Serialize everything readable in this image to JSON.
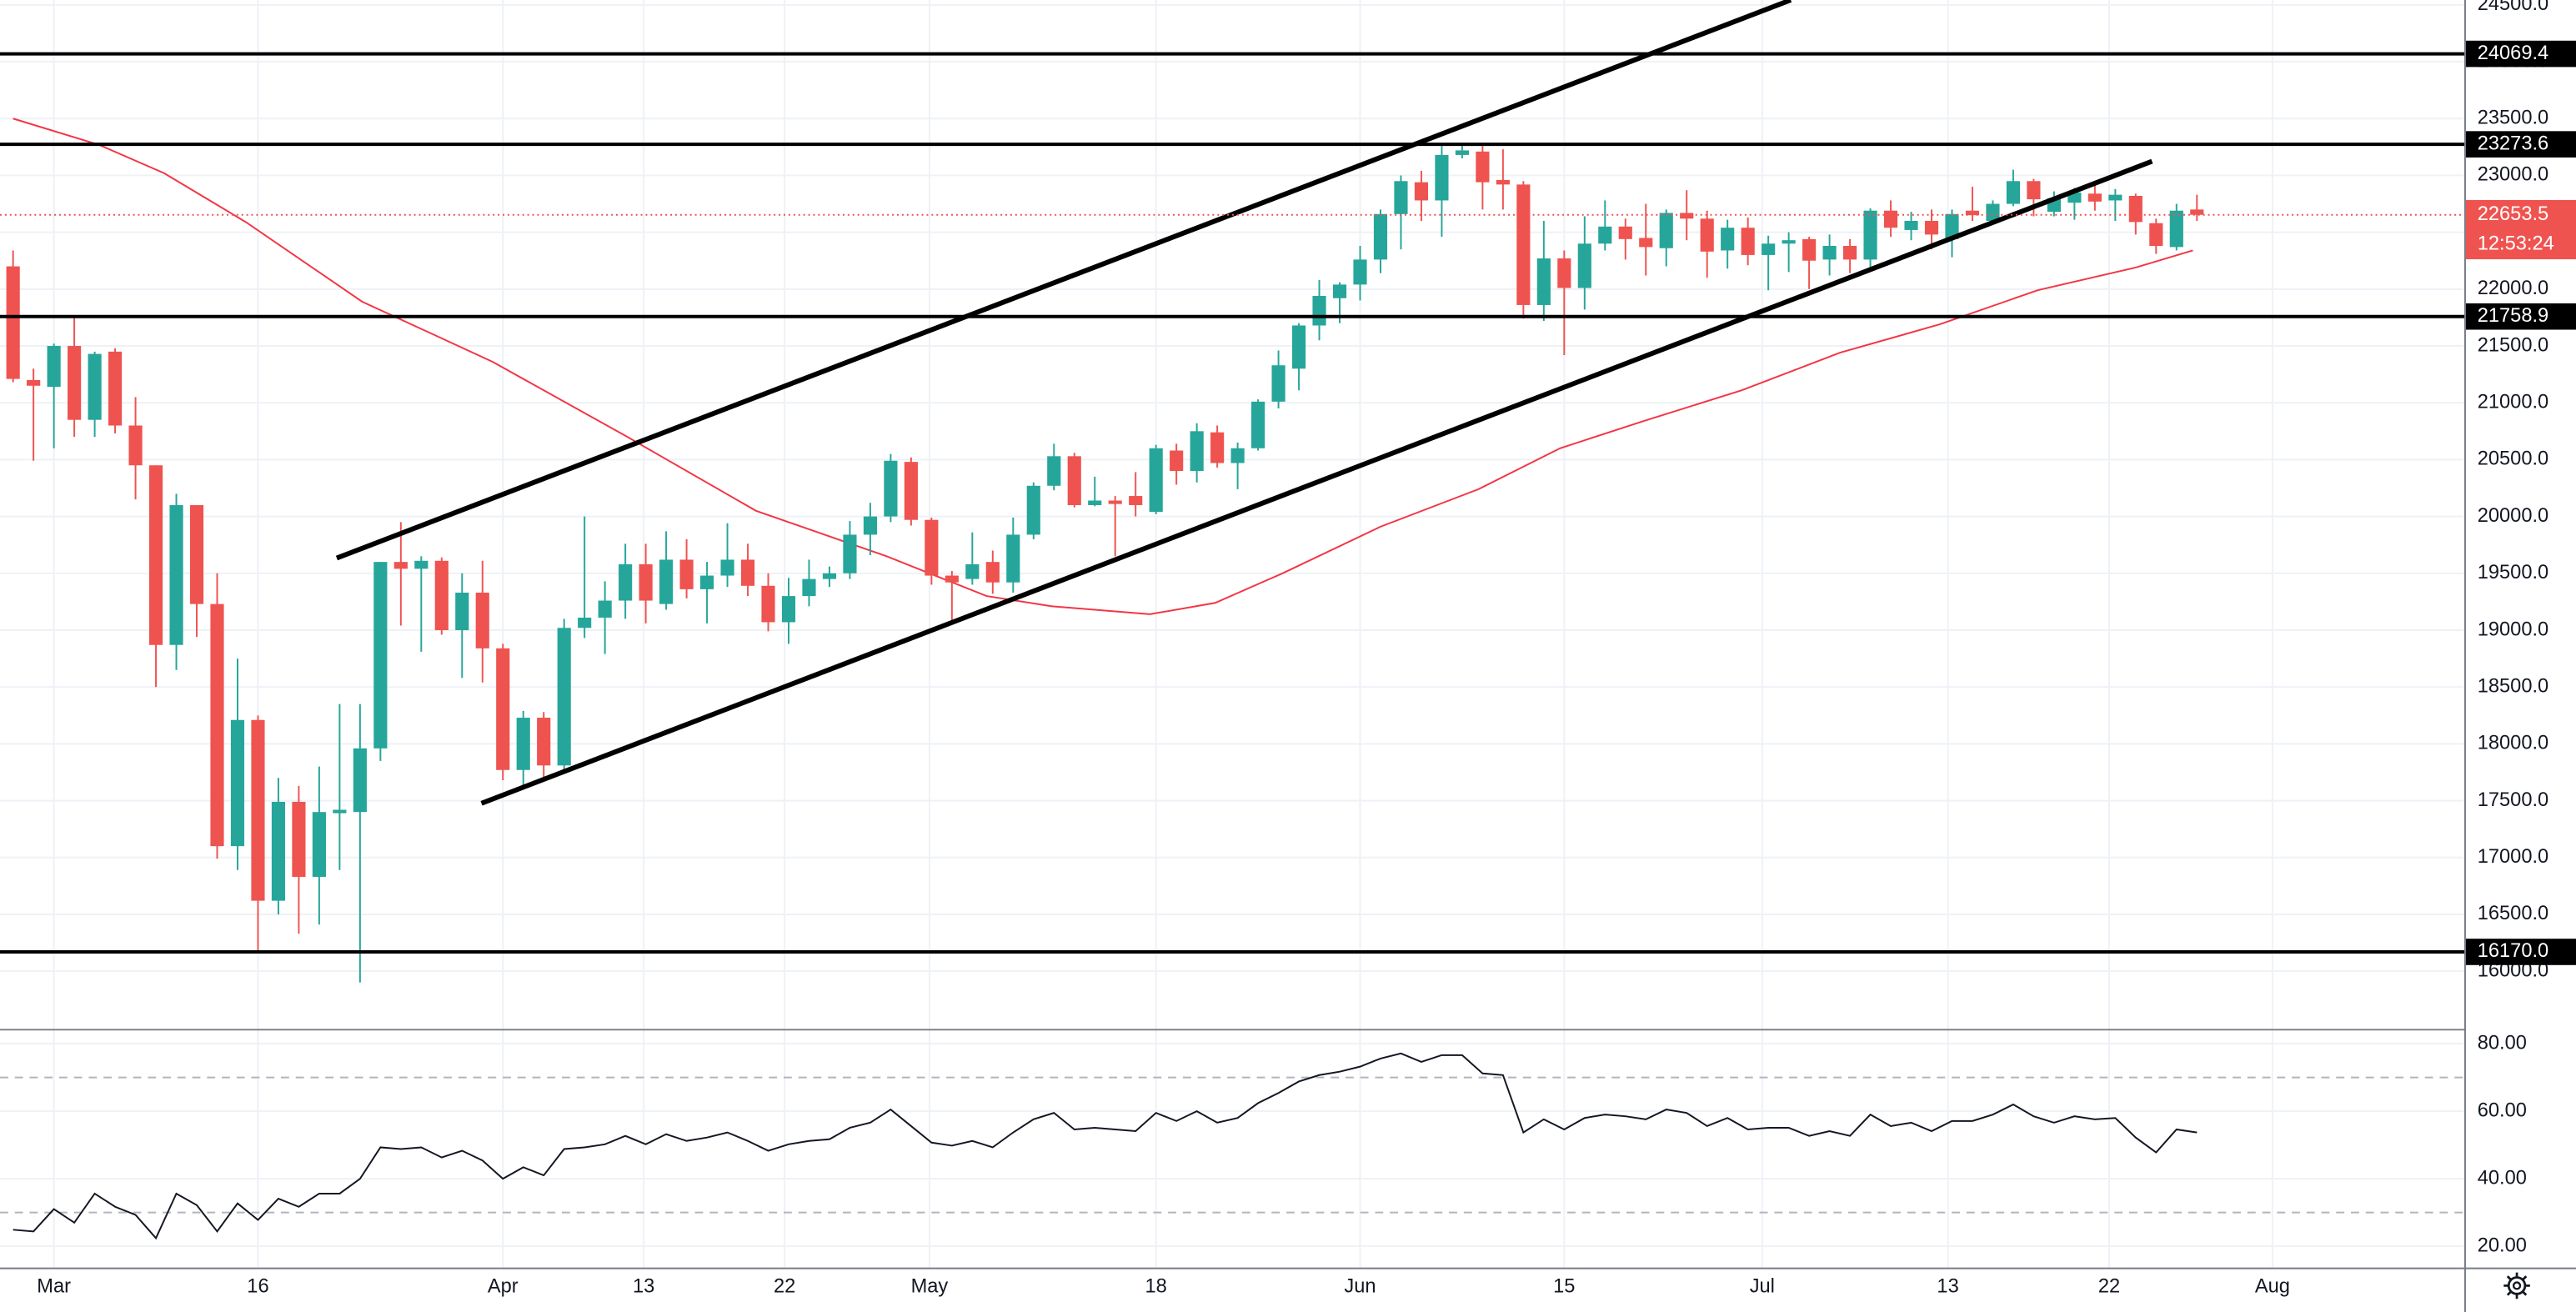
{
  "chart_data": {
    "type": "candlestick",
    "xlim": [
      -0.64,
      120.1
    ],
    "xticks": [
      {
        "value": 2,
        "label": "Mar"
      },
      {
        "value": 12,
        "label": "16"
      },
      {
        "value": 24,
        "label": "Apr"
      },
      {
        "value": 30.9,
        "label": "13"
      },
      {
        "value": 37.8,
        "label": "22"
      },
      {
        "value": 44.9,
        "label": "May"
      },
      {
        "value": 56,
        "label": "18"
      },
      {
        "value": 66,
        "label": "Jun"
      },
      {
        "value": 76,
        "label": "15"
      },
      {
        "value": 85.7,
        "label": "Jul"
      },
      {
        "value": 94.8,
        "label": "13"
      },
      {
        "value": 102.7,
        "label": "22"
      },
      {
        "value": 110.7,
        "label": "Aug"
      }
    ],
    "ylim": [
      15493,
      24543
    ],
    "yticks": [
      {
        "value": 16000,
        "label": "16000.0"
      },
      {
        "value": 16500,
        "label": "16500.0"
      },
      {
        "value": 17000,
        "label": "17000.0"
      },
      {
        "value": 17500,
        "label": "17500.0"
      },
      {
        "value": 18000,
        "label": "18000.0"
      },
      {
        "value": 18500,
        "label": "18500.0"
      },
      {
        "value": 19000,
        "label": "19000.0"
      },
      {
        "value": 19500,
        "label": "19500.0"
      },
      {
        "value": 20000,
        "label": "20000.0"
      },
      {
        "value": 20500,
        "label": "20500.0"
      },
      {
        "value": 21000,
        "label": "21000.0"
      },
      {
        "value": 21500,
        "label": "21500.0"
      },
      {
        "value": 22000,
        "label": "22000.0"
      },
      {
        "value": 22500,
        "label": "22500.0"
      },
      {
        "value": 23000,
        "label": "23000.0"
      },
      {
        "value": 23500,
        "label": "23500.0"
      },
      {
        "value": 24000,
        "label": "24000.0"
      },
      {
        "value": 24500,
        "label": "24500.0"
      }
    ],
    "grid": true,
    "up_color": "#26a69a",
    "down_color": "#ef5350",
    "open": [
      22200,
      21200,
      21140,
      21500,
      20850,
      21450,
      20800,
      20450,
      18870,
      20100,
      19230,
      17100,
      18210,
      16620,
      17490,
      16830,
      17390,
      17400,
      17960,
      19600,
      19540,
      19610,
      19000,
      19330,
      18840,
      17770,
      18230,
      17810,
      19020,
      19110,
      19260,
      19580,
      19230,
      19620,
      19360,
      19480,
      19620,
      19390,
      19070,
      19300,
      19450,
      19500,
      19840,
      20000,
      20480,
      19970,
      19480,
      19450,
      19600,
      19420,
      19840,
      20270,
      20530,
      20100,
      20140,
      20180,
      20040,
      20580,
      20400,
      20740,
      20470,
      20600,
      21010,
      21300,
      21680,
      21920,
      22040,
      22260,
      22660,
      22940,
      22780,
      23180,
      23210,
      22960,
      22920,
      21860,
      22270,
      22010,
      22400,
      22550,
      22450,
      22360,
      22670,
      22620,
      22340,
      22540,
      22300,
      22400,
      22440,
      22260,
      22380,
      22260,
      22690,
      22520,
      22600,
      22440,
      22690,
      22600,
      22750,
      22950,
      22680,
      22760,
      22840,
      22780,
      22820,
      22580,
      22370,
      22700
    ],
    "high": [
      22340,
      21300,
      21520,
      21750,
      21450,
      21480,
      21050,
      20450,
      20200,
      20100,
      19500,
      18750,
      18250,
      17700,
      17630,
      17800,
      18350,
      18350,
      19600,
      19950,
      19650,
      19640,
      19500,
      19610,
      18880,
      18290,
      18280,
      19100,
      20000,
      19430,
      19760,
      19760,
      19870,
      19800,
      19600,
      19940,
      19760,
      19500,
      19460,
      19620,
      19560,
      19960,
      20120,
      20550,
      20520,
      19990,
      19520,
      19860,
      19700,
      19990,
      20300,
      20640,
      20560,
      20350,
      20180,
      20390,
      20630,
      20640,
      20820,
      20800,
      20650,
      21030,
      21460,
      21700,
      22080,
      22060,
      22380,
      22700,
      23000,
      23040,
      23270,
      23280,
      23280,
      23230,
      22950,
      22600,
      22340,
      22640,
      22780,
      22620,
      22750,
      22700,
      22870,
      22690,
      22610,
      22630,
      22470,
      22500,
      22460,
      22480,
      22440,
      22710,
      22780,
      22680,
      22700,
      22700,
      22900,
      22780,
      23050,
      22970,
      22860,
      22890,
      22920,
      22880,
      22840,
      22620,
      22750,
      22830
    ],
    "low": [
      21180,
      20490,
      20600,
      20700,
      20700,
      20730,
      20150,
      18500,
      18650,
      18940,
      16990,
      16890,
      16180,
      16500,
      16330,
      16410,
      16890,
      15900,
      17850,
      19040,
      18810,
      18960,
      18580,
      18540,
      17680,
      17620,
      17700,
      17750,
      18930,
      18790,
      19100,
      19060,
      19180,
      19280,
      19060,
      19380,
      19300,
      18990,
      18880,
      19210,
      19380,
      19450,
      19660,
      19950,
      19920,
      19400,
      19080,
      19400,
      19320,
      19330,
      19800,
      20230,
      20080,
      20090,
      19650,
      20000,
      20020,
      20280,
      20300,
      20430,
      20240,
      20580,
      20950,
      21110,
      21550,
      21700,
      21900,
      22140,
      22350,
      22600,
      22460,
      23150,
      22700,
      22700,
      21740,
      21720,
      21420,
      21820,
      22340,
      22260,
      22120,
      22200,
      22430,
      22100,
      22180,
      22210,
      21990,
      22150,
      22000,
      22120,
      22140,
      22170,
      22460,
      22430,
      22350,
      22280,
      22600,
      22570,
      22730,
      22640,
      22640,
      22610,
      22690,
      22600,
      22480,
      22310,
      22340,
      22600
    ],
    "close": [
      21210,
      21150,
      21500,
      20850,
      21430,
      20800,
      20450,
      18870,
      20100,
      19230,
      17100,
      18210,
      16620,
      17490,
      16830,
      17400,
      17420,
      17960,
      19600,
      19540,
      19610,
      19000,
      19330,
      18840,
      17770,
      18230,
      17810,
      19020,
      19110,
      19260,
      19580,
      19260,
      19620,
      19360,
      19480,
      19620,
      19390,
      19070,
      19300,
      19450,
      19500,
      19840,
      20000,
      20490,
      19970,
      19480,
      19420,
      19580,
      19420,
      19840,
      20270,
      20530,
      20100,
      20140,
      20110,
      20100,
      20600,
      20400,
      20750,
      20470,
      20600,
      21010,
      21330,
      21680,
      21940,
      22040,
      22260,
      22660,
      22950,
      22780,
      23180,
      23220,
      22940,
      22920,
      21860,
      22270,
      22010,
      22400,
      22550,
      22440,
      22370,
      22670,
      22620,
      22330,
      22540,
      22300,
      22400,
      22430,
      22250,
      22380,
      22260,
      22690,
      22540,
      22600,
      22480,
      22660,
      22650,
      22750,
      22950,
      22790,
      22800,
      22850,
      22770,
      22830,
      22590,
      22380,
      22690,
      22653.5
    ],
    "moving_average": {
      "color": "#f23645",
      "x": [
        0,
        4.2,
        7.4,
        11.4,
        17.1,
        23.5,
        30,
        36.4,
        42.8,
        47.7,
        50.9,
        55.7,
        58.9,
        62.2,
        67,
        71.8,
        75.8,
        79.9,
        84.7,
        89.5,
        94.4,
        99.2,
        104,
        106.8
      ],
      "values": [
        23500,
        23270,
        23020,
        22590,
        21890,
        21360,
        20710,
        20050,
        19650,
        19300,
        19210,
        19140,
        19240,
        19500,
        19910,
        20240,
        20600,
        20840,
        21110,
        21440,
        21690,
        21990,
        22190,
        22340
      ]
    },
    "trendlines": [
      {
        "x": [
          15.86,
          87.1
        ],
        "values": [
          19634,
          24543
        ]
      },
      {
        "x": [
          22.95,
          104.8
        ],
        "values": [
          17477,
          23124
        ]
      }
    ],
    "levels": [
      {
        "value": 24069.4,
        "label": "24069.4"
      },
      {
        "value": 23273.6,
        "label": "23273.6"
      },
      {
        "value": 21758.9,
        "label": "21758.9"
      },
      {
        "value": 16170.0,
        "label": "16170.0"
      }
    ],
    "last_price": {
      "value": 22653.5,
      "label": "22653.5"
    },
    "countdown": "12:53:24",
    "indicator": {
      "type": "line",
      "color": "#131722",
      "ylim": [
        13.7,
        83.9
      ],
      "yticks": [
        {
          "value": 20,
          "label": "20.00"
        },
        {
          "value": 40,
          "label": "40.00"
        },
        {
          "value": 60,
          "label": "60.00"
        },
        {
          "value": 80,
          "label": "80.00"
        }
      ],
      "bands": [
        30,
        70
      ],
      "values": [
        24.9,
        24.4,
        31,
        27,
        35.6,
        31.7,
        29.3,
        22.4,
        35.6,
        32.2,
        24.4,
        32.7,
        27.8,
        34.1,
        31.7,
        35.6,
        35.6,
        40,
        49.3,
        48.8,
        49.3,
        46.3,
        48.3,
        45.4,
        40,
        43.4,
        41,
        48.8,
        49.3,
        50.2,
        52.7,
        50.2,
        53.2,
        51.2,
        52.2,
        53.7,
        51.2,
        48.3,
        50.2,
        51.2,
        51.7,
        55.1,
        56.6,
        60.5,
        55.6,
        50.7,
        49.8,
        51.2,
        49.3,
        53.7,
        57.6,
        59.5,
        54.6,
        55.1,
        54.6,
        54.1,
        59.5,
        57.1,
        60,
        56.6,
        58,
        62.4,
        65.4,
        68.8,
        70.7,
        71.7,
        73.2,
        75.6,
        77.1,
        74.6,
        76.6,
        76.6,
        71.2,
        70.7,
        53.7,
        57.6,
        54.6,
        58,
        59,
        58.5,
        57.6,
        60.5,
        59.5,
        55.6,
        58,
        54.6,
        55.1,
        55.1,
        52.7,
        54.1,
        52.7,
        59,
        55.6,
        56.6,
        54.1,
        57.1,
        57.1,
        59,
        62,
        58.5,
        56.6,
        58.5,
        57.6,
        58,
        52.2,
        47.8,
        54.6,
        53.7
      ]
    }
  }
}
